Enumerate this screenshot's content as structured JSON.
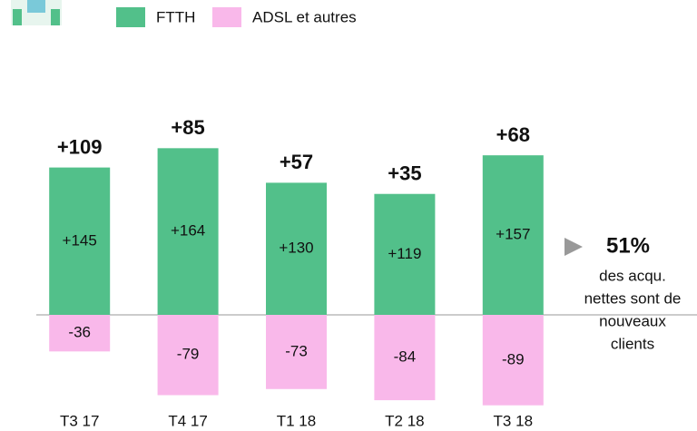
{
  "chart_data": {
    "type": "bar",
    "categories": [
      "T3 17",
      "T4 17",
      "T1 18",
      "T2 18",
      "T3 18"
    ],
    "series": [
      {
        "name": "FTTH",
        "color": "#52c08a",
        "values": [
          145,
          164,
          130,
          119,
          157
        ],
        "value_labels": [
          "+145",
          "+164",
          "+130",
          "+119",
          "+157"
        ]
      },
      {
        "name": "ADSL et autres",
        "color": "#f9b8ea",
        "values": [
          -36,
          -79,
          -73,
          -84,
          -89
        ]
      }
    ],
    "totals": [
      109,
      85,
      57,
      35,
      68
    ],
    "total_labels": [
      "+109",
      "+85",
      "+57",
      "+35",
      "+68"
    ],
    "annotation": {
      "headline": "51%",
      "lines": [
        "des acqu.",
        "nettes sont de",
        "nouveaux",
        "clients"
      ]
    }
  }
}
